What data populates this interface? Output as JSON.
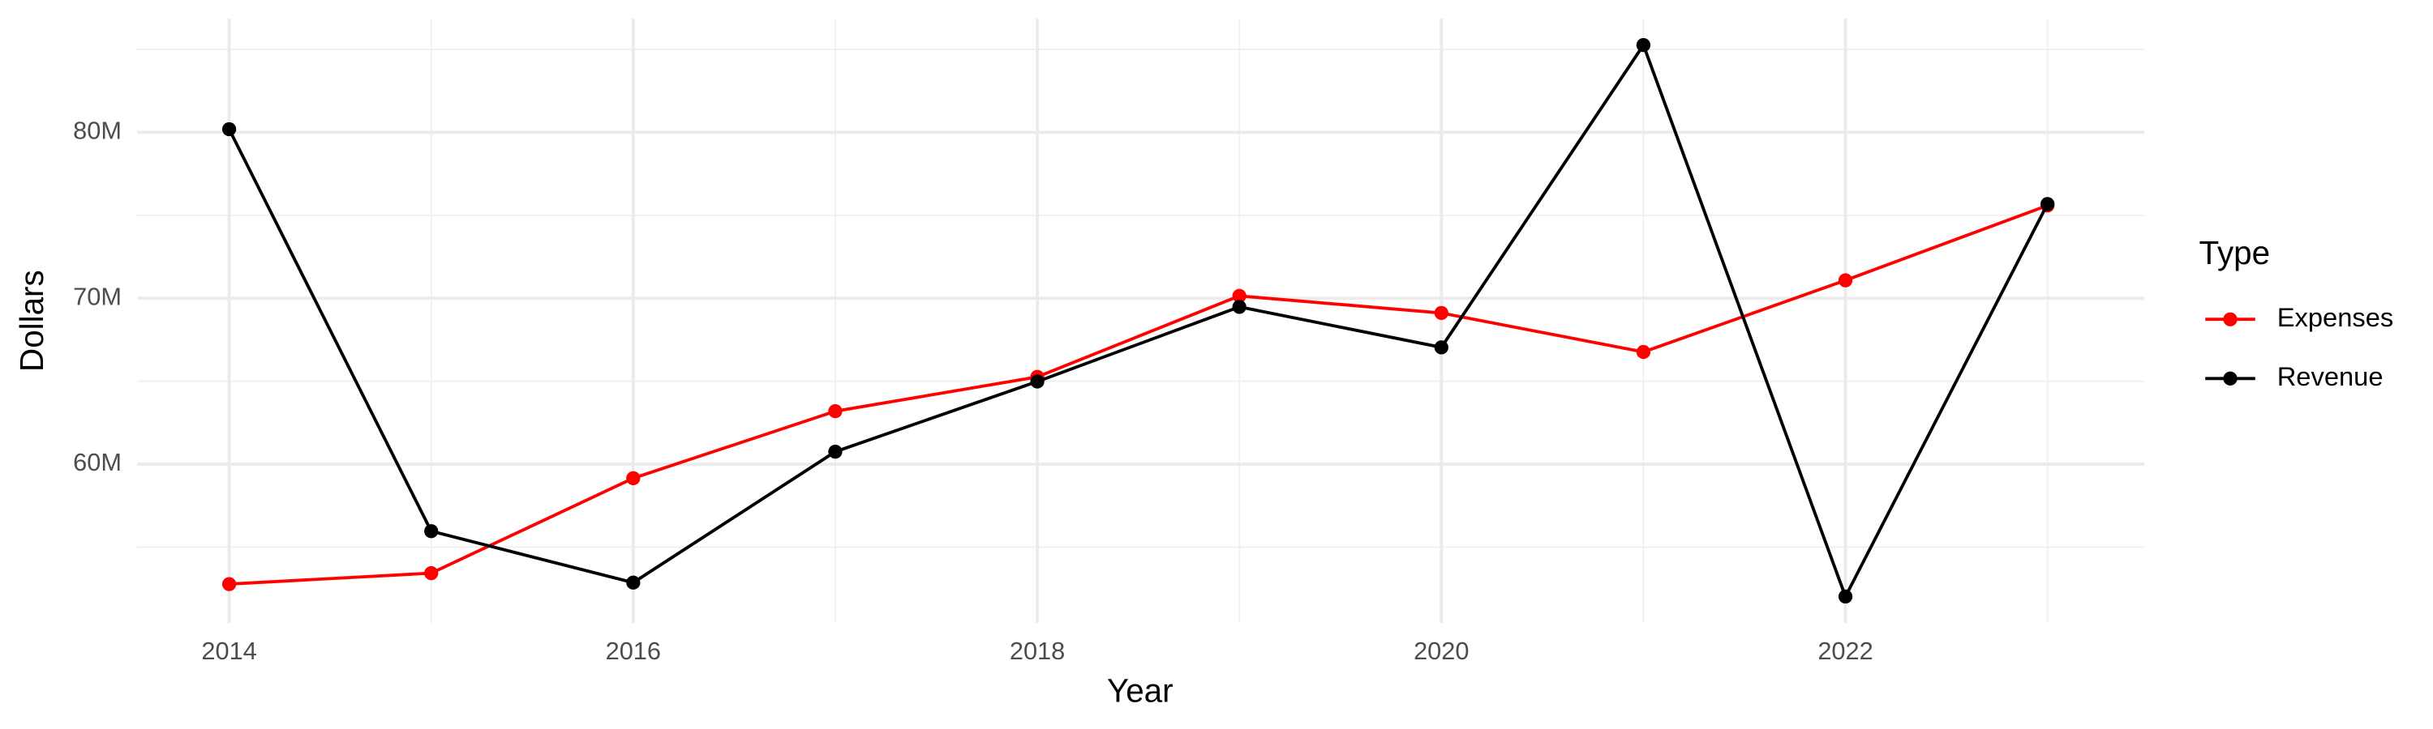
{
  "chart_data": {
    "type": "line",
    "x_label": "Year",
    "y_label": "Dollars",
    "x": [
      2014,
      2015,
      2016,
      2017,
      2018,
      2019,
      2020,
      2021,
      2022,
      2023
    ],
    "series": [
      {
        "name": "Expenses",
        "color": "#ff0000",
        "values": [
          52770000,
          53430000,
          59150000,
          63190000,
          65260000,
          70140000,
          69110000,
          66760000,
          71080000,
          75590000
        ]
      },
      {
        "name": "Revenue",
        "color": "#000000",
        "values": [
          80190000,
          55960000,
          52860000,
          60750000,
          64980000,
          69480000,
          67040000,
          85260000,
          52020000,
          75680000
        ]
      }
    ],
    "xlim": [
      2013.545,
      2023.48
    ],
    "xticks": [
      2014,
      2016,
      2018,
      2020,
      2022
    ],
    "ylim": [
      50420000,
      86850000
    ],
    "yticks": [
      {
        "value": 60000000,
        "label": "60M"
      },
      {
        "value": 70000000,
        "label": "70M"
      },
      {
        "value": 80000000,
        "label": "80M"
      }
    ],
    "grid": true,
    "legend_title": "Type",
    "legend_position": "right"
  }
}
